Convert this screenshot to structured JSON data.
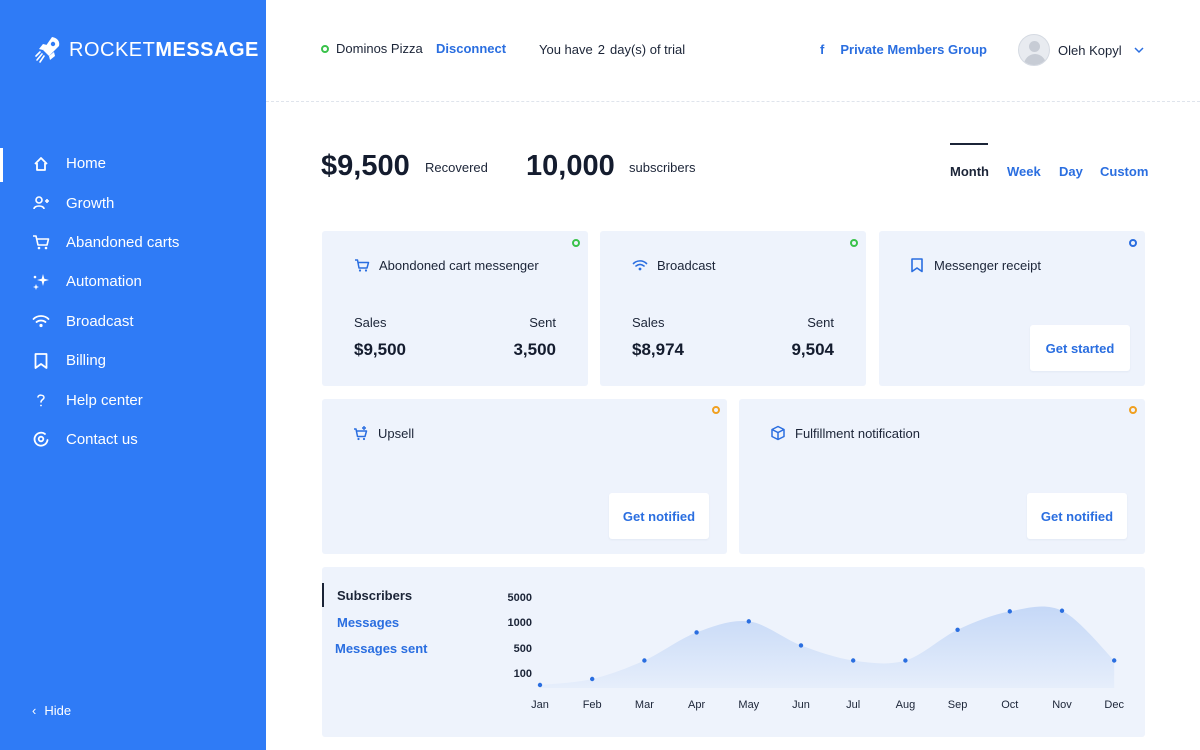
{
  "brand": {
    "name_light": "ROCKET",
    "name_bold": "MESSAGE"
  },
  "sidebar": {
    "items": [
      {
        "label": "Home",
        "icon": "home-icon",
        "active": true
      },
      {
        "label": "Growth",
        "icon": "user-plus-icon"
      },
      {
        "label": "Abandoned carts",
        "icon": "cart-icon"
      },
      {
        "label": "Automation",
        "icon": "sparkle-icon"
      },
      {
        "label": "Broadcast",
        "icon": "wifi-icon"
      },
      {
        "label": "Billing",
        "icon": "bookmark-icon"
      },
      {
        "label": "Help center",
        "icon": "question-icon"
      },
      {
        "label": "Contact us",
        "icon": "at-icon"
      }
    ],
    "hide_label": "Hide"
  },
  "header": {
    "store_name": "Dominos Pizza",
    "disconnect_label": "Disconnect",
    "trial_prefix": "You have",
    "trial_days": "2",
    "trial_suffix": "day(s) of trial",
    "fb_icon": "f",
    "fb_group": "Private Members Group",
    "user_name": "Oleh Kopyl"
  },
  "stats": {
    "recovered_value": "$9,500",
    "recovered_label": "Recovered",
    "subscribers_value": "10,000",
    "subscribers_label": "subscribers"
  },
  "ranges": [
    "Month",
    "Week",
    "Day",
    "Custom"
  ],
  "cards": {
    "abandoned": {
      "title": "Abondoned cart messenger",
      "sales_label": "Sales",
      "sent_label": "Sent",
      "sales": "$9,500",
      "sent": "3,500",
      "status_color": "#39c24a"
    },
    "broadcast": {
      "title": "Broadcast",
      "sales_label": "Sales",
      "sent_label": "Sent",
      "sales": "$8,974",
      "sent": "9,504",
      "status_color": "#39c24a"
    },
    "receipt": {
      "title": "Messenger receipt",
      "button": "Get started",
      "status_color": "#2a6ee0"
    },
    "upsell": {
      "title": "Upsell",
      "button": "Get notified",
      "status_color": "#f0a020"
    },
    "fulfillment": {
      "title": "Fulfillment notification",
      "button": "Get notified",
      "status_color": "#f0a020"
    }
  },
  "chart_tabs": [
    "Subscribers",
    "Messages",
    "Messages sent"
  ],
  "chart_data": {
    "type": "area",
    "categories": [
      "Jan",
      "Feb",
      "Mar",
      "Apr",
      "May",
      "Jun",
      "Jul",
      "Aug",
      "Sep",
      "Oct",
      "Nov",
      "Dec"
    ],
    "y_ticks": [
      "5000",
      "1000",
      "500",
      "100"
    ],
    "values": [
      20,
      60,
      300,
      800,
      1100,
      550,
      300,
      300,
      850,
      2700,
      2800,
      300
    ],
    "color": "#2a6ee0"
  }
}
